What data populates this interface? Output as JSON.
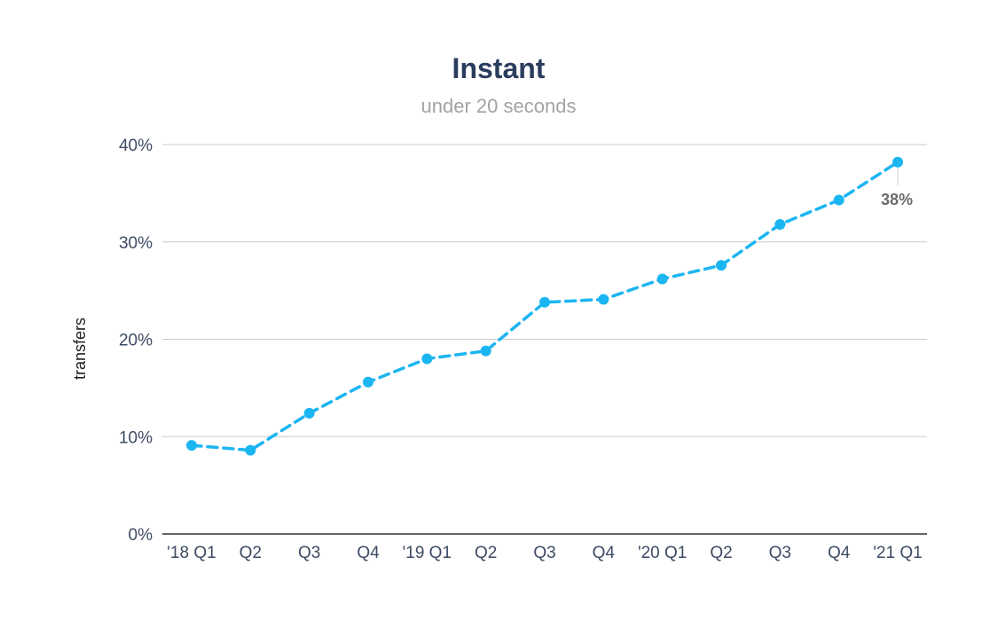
{
  "chart_data": {
    "type": "line",
    "title": "Instant",
    "subtitle": "under 20 seconds",
    "ylabel": "transfers",
    "ylim": [
      0,
      40
    ],
    "yticks": [
      "0%",
      "10%",
      "20%",
      "30%",
      "40%"
    ],
    "ytick_values": [
      0,
      10,
      20,
      30,
      40
    ],
    "categories": [
      "'18 Q1",
      "Q2",
      "Q3",
      "Q4",
      "'19 Q1",
      "Q2",
      "Q3",
      "Q4",
      "'20 Q1",
      "Q2",
      "Q3",
      "Q4",
      "'21 Q1"
    ],
    "series": [
      {
        "values": [
          9.1,
          8.6,
          12.4,
          15.6,
          18.0,
          18.8,
          23.8,
          24.1,
          26.2,
          27.6,
          31.8,
          34.3,
          38.2
        ]
      }
    ],
    "data_labels": [
      {
        "index": 12,
        "text": "38%"
      }
    ],
    "grid": true,
    "legend": "none",
    "colors": {
      "line": "#1bb5f2",
      "title": "#2b3d5e",
      "subtitle": "#a3a3a3"
    }
  }
}
